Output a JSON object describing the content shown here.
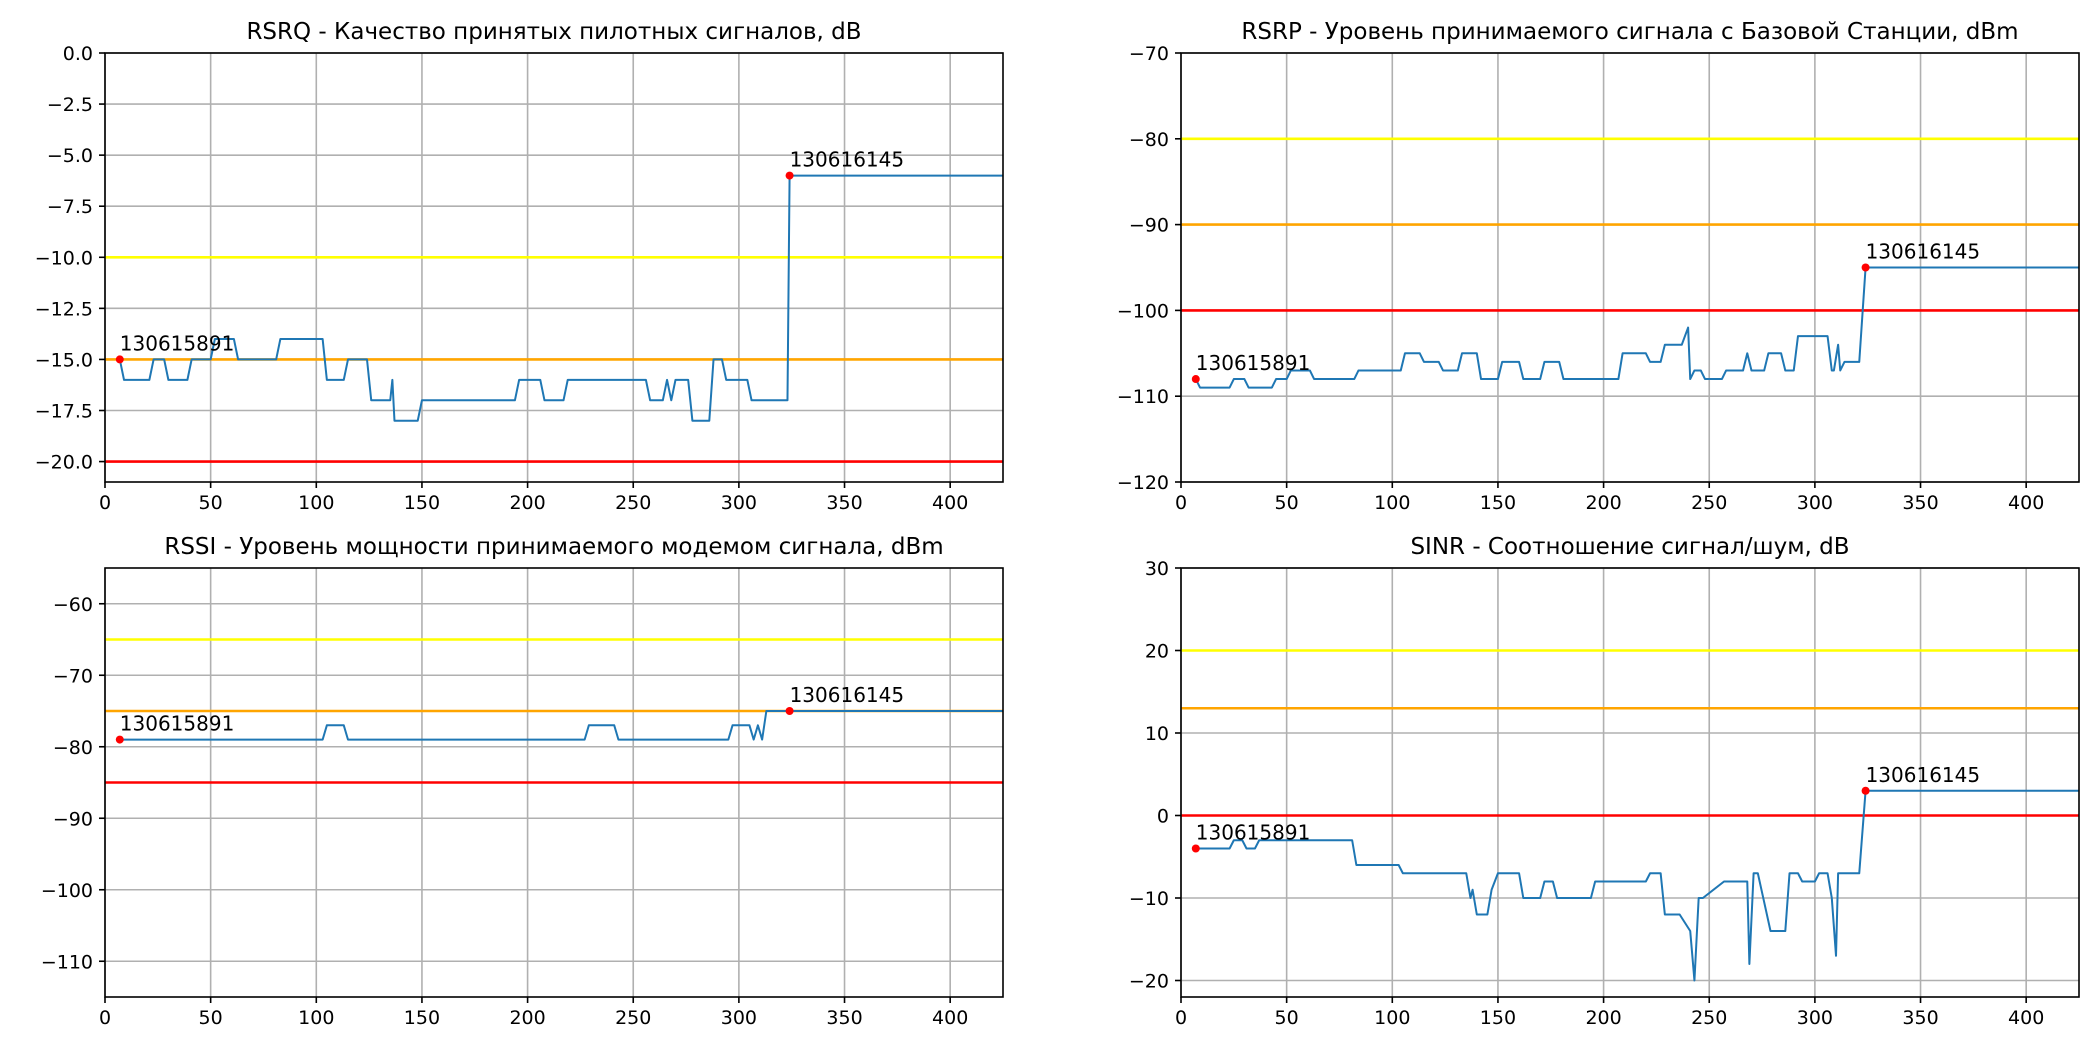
{
  "chart_data": [
    {
      "type": "line",
      "title": "RSRQ - Качество принятых пилотных сигналов, dB",
      "xlim": [
        0,
        425
      ],
      "ylim": [
        -21,
        0
      ],
      "xticks": [
        0,
        50,
        100,
        150,
        200,
        250,
        300,
        350,
        400
      ],
      "xtick_labels": [
        "0",
        "50",
        "100",
        "150",
        "200",
        "250",
        "300",
        "350",
        "400"
      ],
      "yticks": [
        0,
        -2.5,
        -5,
        -7.5,
        -10,
        -12.5,
        -15,
        -17.5,
        -20
      ],
      "ytick_labels": [
        "0.0",
        "−2.5",
        "−5.0",
        "−7.5",
        "−10.0",
        "−12.5",
        "−15.0",
        "−17.5",
        "−20.0"
      ],
      "grid": true,
      "thresholds": [
        {
          "value": -10,
          "color": "#ffff00"
        },
        {
          "value": -15,
          "color": "#ffa500"
        },
        {
          "value": -20,
          "color": "#ff0000"
        }
      ],
      "series": [
        {
          "color": "#1f77b4",
          "x": [
            7,
            9,
            21,
            23,
            28,
            30,
            39,
            41,
            45,
            47,
            50,
            52,
            56,
            58,
            61,
            63,
            81,
            83,
            103,
            105,
            113,
            115,
            124,
            126,
            135,
            136,
            137,
            139,
            148,
            150,
            194,
            196,
            206,
            208,
            217,
            219,
            256,
            258,
            264,
            266,
            268,
            270,
            276,
            278,
            286,
            288,
            292,
            294,
            304,
            306,
            312,
            314,
            323,
            324,
            425
          ],
          "y": [
            -15,
            -16,
            -16,
            -15,
            -15,
            -16,
            -16,
            -15,
            -15,
            -15,
            -15,
            -14,
            -14,
            -14,
            -14,
            -15,
            -15,
            -14,
            -14,
            -16,
            -16,
            -15,
            -15,
            -17,
            -17,
            -16,
            -18,
            -18,
            -18,
            -17,
            -17,
            -16,
            -16,
            -17,
            -17,
            -16,
            -16,
            -17,
            -17,
            -16,
            -17,
            -16,
            -16,
            -18,
            -18,
            -15,
            -15,
            -16,
            -16,
            -17,
            -17,
            -17,
            -17,
            -6,
            -6
          ]
        }
      ],
      "markers": [
        {
          "x": 7,
          "y": -15,
          "label": "130615891"
        },
        {
          "x": 324,
          "y": -6,
          "label": "130616145"
        }
      ]
    },
    {
      "type": "line",
      "title": "RSRP - Уровень принимаемого сигнала с Базовой Станции, dBm",
      "xlim": [
        0,
        425
      ],
      "ylim": [
        -120,
        -70
      ],
      "xticks": [
        0,
        50,
        100,
        150,
        200,
        250,
        300,
        350,
        400
      ],
      "xtick_labels": [
        "0",
        "50",
        "100",
        "150",
        "200",
        "250",
        "300",
        "350",
        "400"
      ],
      "yticks": [
        -70,
        -80,
        -90,
        -100,
        -110,
        -120
      ],
      "ytick_labels": [
        "−70",
        "−80",
        "−90",
        "−100",
        "−110",
        "−120"
      ],
      "grid": true,
      "thresholds": [
        {
          "value": -80,
          "color": "#ffff00"
        },
        {
          "value": -90,
          "color": "#ffa500"
        },
        {
          "value": -100,
          "color": "#ff0000"
        }
      ],
      "series": [
        {
          "color": "#1f77b4",
          "x": [
            7,
            9,
            23,
            25,
            30,
            32,
            43,
            45,
            50,
            52,
            61,
            63,
            82,
            84,
            104,
            106,
            113,
            115,
            122,
            124,
            131,
            133,
            140,
            142,
            150,
            152,
            160,
            162,
            170,
            172,
            179,
            181,
            188,
            190,
            195,
            197,
            207,
            209,
            212,
            214,
            220,
            222,
            227,
            229,
            237,
            240,
            241,
            243,
            246,
            248,
            256,
            258,
            264,
            266,
            268,
            270,
            276,
            278,
            284,
            286,
            290,
            292,
            299,
            301,
            306,
            308,
            309,
            311,
            312,
            314,
            316,
            318,
            321,
            324,
            425
          ],
          "y": [
            -108,
            -109,
            -109,
            -108,
            -108,
            -109,
            -109,
            -108,
            -108,
            -107,
            -107,
            -108,
            -108,
            -107,
            -107,
            -105,
            -105,
            -106,
            -106,
            -107,
            -107,
            -105,
            -105,
            -108,
            -108,
            -106,
            -106,
            -108,
            -108,
            -106,
            -106,
            -108,
            -108,
            -108,
            -108,
            -108,
            -108,
            -105,
            -105,
            -105,
            -105,
            -106,
            -106,
            -104,
            -104,
            -102,
            -108,
            -107,
            -107,
            -108,
            -108,
            -107,
            -107,
            -107,
            -105,
            -107,
            -107,
            -105,
            -105,
            -107,
            -107,
            -103,
            -103,
            -103,
            -103,
            -107,
            -107,
            -104,
            -107,
            -106,
            -106,
            -106,
            -106,
            -95,
            -95
          ]
        }
      ],
      "markers": [
        {
          "x": 7,
          "y": -108,
          "label": "130615891"
        },
        {
          "x": 324,
          "y": -95,
          "label": "130616145"
        }
      ]
    },
    {
      "type": "line",
      "title": "RSSI - Уровень мощности принимаемого модемом сигнала, dBm",
      "xlim": [
        0,
        425
      ],
      "ylim": [
        -115,
        -55
      ],
      "xticks": [
        0,
        50,
        100,
        150,
        200,
        250,
        300,
        350,
        400
      ],
      "xtick_labels": [
        "0",
        "50",
        "100",
        "150",
        "200",
        "250",
        "300",
        "350",
        "400"
      ],
      "yticks": [
        -60,
        -70,
        -80,
        -90,
        -100,
        -110
      ],
      "ytick_labels": [
        "−60",
        "−70",
        "−80",
        "−90",
        "−100",
        "−110"
      ],
      "grid": true,
      "thresholds": [
        {
          "value": -65,
          "color": "#ffff00"
        },
        {
          "value": -75,
          "color": "#ffa500"
        },
        {
          "value": -85,
          "color": "#ff0000"
        }
      ],
      "series": [
        {
          "color": "#1f77b4",
          "x": [
            7,
            9,
            103,
            105,
            113,
            115,
            227,
            229,
            241,
            243,
            295,
            297,
            305,
            307,
            309,
            311,
            313,
            315,
            317,
            324,
            425
          ],
          "y": [
            -79,
            -79,
            -79,
            -77,
            -77,
            -79,
            -79,
            -77,
            -77,
            -79,
            -79,
            -77,
            -77,
            -79,
            -77,
            -79,
            -75,
            -75,
            -75,
            -75,
            -75
          ]
        }
      ],
      "markers": [
        {
          "x": 7,
          "y": -79,
          "label": "130615891"
        },
        {
          "x": 324,
          "y": -75,
          "label": "130616145"
        }
      ]
    },
    {
      "type": "line",
      "title": "SINR - Соотношение сигнал/шум, dB",
      "xlim": [
        0,
        425
      ],
      "ylim": [
        -22,
        30
      ],
      "xticks": [
        0,
        50,
        100,
        150,
        200,
        250,
        300,
        350,
        400
      ],
      "xtick_labels": [
        "0",
        "50",
        "100",
        "150",
        "200",
        "250",
        "300",
        "350",
        "400"
      ],
      "yticks": [
        30,
        20,
        10,
        0,
        -10,
        -20
      ],
      "ytick_labels": [
        "30",
        "20",
        "10",
        "0",
        "−10",
        "−20"
      ],
      "grid": true,
      "thresholds": [
        {
          "value": 20,
          "color": "#ffff00"
        },
        {
          "value": 13,
          "color": "#ffa500"
        },
        {
          "value": 0,
          "color": "#ff0000"
        }
      ],
      "series": [
        {
          "color": "#1f77b4",
          "x": [
            7,
            9,
            23,
            25,
            29,
            31,
            35,
            37,
            45,
            47,
            50,
            52,
            81,
            83,
            103,
            105,
            135,
            137,
            138,
            140,
            145,
            147,
            150,
            152,
            160,
            162,
            170,
            172,
            176,
            178,
            184,
            186,
            194,
            196,
            220,
            222,
            227,
            229,
            234,
            236,
            241,
            243,
            245,
            247,
            257,
            259,
            268,
            269,
            271,
            273,
            279,
            281,
            286,
            288,
            292,
            294,
            300,
            302,
            306,
            308,
            310,
            311,
            313,
            315,
            321,
            324,
            425
          ],
          "y": [
            -4,
            -4,
            -4,
            -3,
            -3,
            -4,
            -4,
            -3,
            -3,
            -3,
            -3,
            -3,
            -3,
            -6,
            -6,
            -7,
            -7,
            -10,
            -9,
            -12,
            -12,
            -9,
            -7,
            -7,
            -7,
            -10,
            -10,
            -8,
            -8,
            -10,
            -10,
            -10,
            -10,
            -8,
            -8,
            -7,
            -7,
            -12,
            -12,
            -12,
            -14,
            -20,
            -10,
            -10,
            -8,
            -8,
            -8,
            -18,
            -7,
            -7,
            -14,
            -14,
            -14,
            -7,
            -7,
            -8,
            -8,
            -7,
            -7,
            -10,
            -17,
            -7,
            -7,
            -7,
            -7,
            3,
            3
          ]
        }
      ],
      "markers": [
        {
          "x": 7,
          "y": -4,
          "label": "130615891"
        },
        {
          "x": 324,
          "y": 3,
          "label": "130616145"
        }
      ]
    }
  ]
}
